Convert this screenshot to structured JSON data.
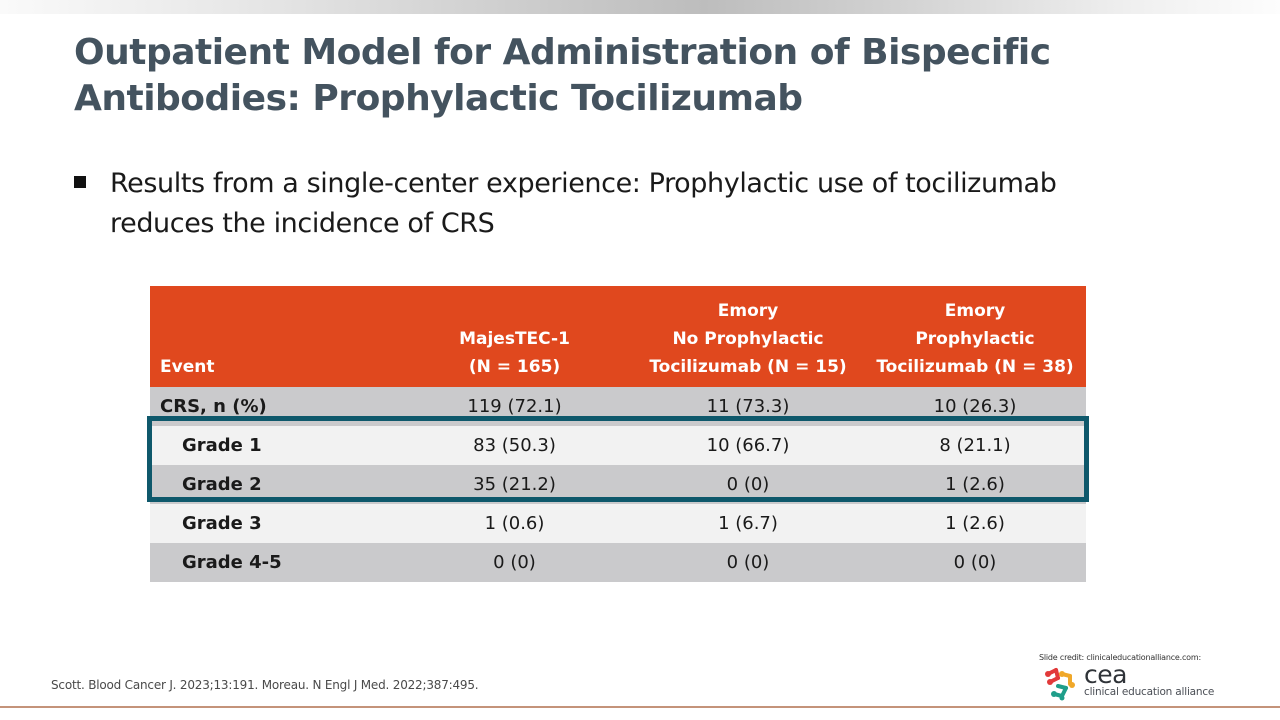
{
  "slide": {
    "title": "Outpatient Model for Administration of Bispecific Antibodies: Prophylactic Tocilizumab",
    "bullet": "Results from a single-center experience: Prophylactic use of tocilizumab reduces the incidence of CRS"
  },
  "table": {
    "headers": [
      {
        "lines": [
          "Event"
        ]
      },
      {
        "lines": [
          "MajesTEC-1",
          "(N = 165)"
        ]
      },
      {
        "lines": [
          "Emory",
          "No Prophylactic",
          "Tocilizumab (N = 15)"
        ]
      },
      {
        "lines": [
          "Emory",
          "Prophylactic",
          "Tocilizumab (N = 38)"
        ]
      }
    ],
    "rows": [
      {
        "label": "CRS, n (%)",
        "values": [
          "119 (72.1)",
          "11 (73.3)",
          "10 (26.3)"
        ]
      },
      {
        "label": "Grade 1",
        "values": [
          "83 (50.3)",
          "10 (66.7)",
          "8 (21.1)"
        ]
      },
      {
        "label": "Grade 2",
        "values": [
          "35 (21.2)",
          "0 (0)",
          "1 (2.6)"
        ]
      },
      {
        "label": "Grade 3",
        "values": [
          "1 (0.6)",
          "1 (6.7)",
          "1 (2.6)"
        ]
      },
      {
        "label": "Grade 4-5",
        "values": [
          "0 (0)",
          "0 (0)",
          "0 (0)"
        ]
      }
    ],
    "highlighted_rows": [
      "Grade 1",
      "Grade 2"
    ]
  },
  "footer": {
    "references": "Scott. Blood Cancer J. 2023;13:191. Moreau. N Engl J Med. 2022;387:495.",
    "credit_label": "Slide credit:",
    "credit_site": "clinicaleducationalliance.com:",
    "logo_name": "cea",
    "logo_subtitle": "clinical education alliance"
  },
  "colors": {
    "title": "#44535f",
    "header_bg": "#e0481e",
    "row_dark": "#cacacc",
    "row_light": "#f2f2f2",
    "highlight_border": "#0e586b",
    "footer_line": "#c4937a"
  }
}
